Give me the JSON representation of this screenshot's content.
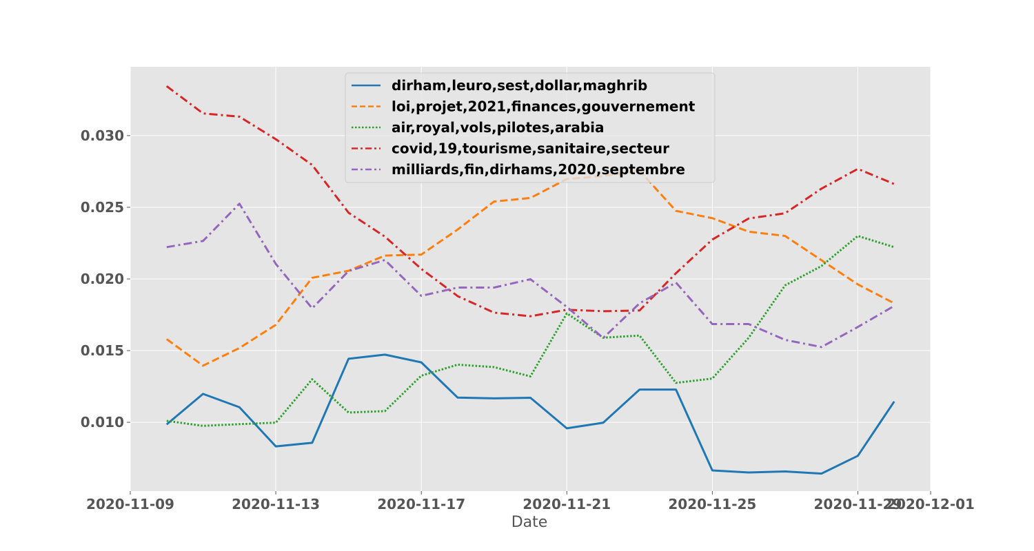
{
  "chart_data": {
    "type": "line",
    "title": "",
    "xlabel": "Date",
    "ylabel": "",
    "x_ticks": [
      "2020-11-09",
      "2020-11-13",
      "2020-11-17",
      "2020-11-21",
      "2020-11-25",
      "2020-11-29",
      "2020-12-01"
    ],
    "y_ticks": [
      "0.010",
      "0.015",
      "0.020",
      "0.025",
      "0.030"
    ],
    "xlim": [
      "2020-11-09",
      "2020-12-01"
    ],
    "ylim": [
      0.0052,
      0.0348
    ],
    "grid": true,
    "legend_position": "top-center",
    "x": [
      "2020-11-10",
      "2020-11-11",
      "2020-11-12",
      "2020-11-13",
      "2020-11-14",
      "2020-11-15",
      "2020-11-16",
      "2020-11-17",
      "2020-11-18",
      "2020-11-19",
      "2020-11-20",
      "2020-11-21",
      "2020-11-22",
      "2020-11-23",
      "2020-11-24",
      "2020-11-25",
      "2020-11-26",
      "2020-11-27",
      "2020-11-28",
      "2020-11-29",
      "2020-11-30"
    ],
    "series": [
      {
        "name": "dirham,leuro,sest,dollar,maghrib",
        "color": "#1f77b4",
        "dash": "solid",
        "values": [
          0.00985,
          0.01198,
          0.01105,
          0.00832,
          0.00857,
          0.01443,
          0.01472,
          0.01418,
          0.01172,
          0.01167,
          0.01171,
          0.00958,
          0.00997,
          0.01228,
          0.01228,
          0.00664,
          0.0065,
          0.00657,
          0.00642,
          0.00766,
          0.01145
        ]
      },
      {
        "name": "loi,projet,2021,finances,gouvernement",
        "color": "#ff7f0e",
        "dash": "dashed",
        "values": [
          0.0158,
          0.01395,
          0.01518,
          0.0168,
          0.02008,
          0.02057,
          0.02163,
          0.0217,
          0.02345,
          0.0254,
          0.02565,
          0.02697,
          0.02718,
          0.02755,
          0.02475,
          0.02424,
          0.0233,
          0.023,
          0.02131,
          0.01962,
          0.0183
        ]
      },
      {
        "name": "air,royal,vols,pilotes,arabia",
        "color": "#2ca02c",
        "dash": "dotted",
        "values": [
          0.0101,
          0.00975,
          0.00987,
          0.00997,
          0.013,
          0.01068,
          0.01078,
          0.01325,
          0.01402,
          0.01385,
          0.0132,
          0.0176,
          0.0159,
          0.01605,
          0.01275,
          0.01305,
          0.0159,
          0.01955,
          0.0209,
          0.023,
          0.02222
        ]
      },
      {
        "name": "covid,19,tourisme,sanitaire,secteur",
        "color": "#d62728",
        "dash": "dashdot",
        "values": [
          0.03345,
          0.03155,
          0.03132,
          0.02975,
          0.02795,
          0.02462,
          0.02295,
          0.0207,
          0.0188,
          0.01765,
          0.0174,
          0.01785,
          0.01775,
          0.0178,
          0.0204,
          0.02275,
          0.02422,
          0.02458,
          0.0263,
          0.02768,
          0.02662
        ]
      },
      {
        "name": "milliards,fin,dirhams,2020,septembre",
        "color": "#9467bd",
        "dash": "dashdot",
        "values": [
          0.02222,
          0.02265,
          0.02525,
          0.02105,
          0.01795,
          0.02055,
          0.02132,
          0.01882,
          0.0194,
          0.0194,
          0.01998,
          0.01805,
          0.01588,
          0.0183,
          0.01975,
          0.01685,
          0.01685,
          0.01575,
          0.01525,
          0.01665,
          0.01812
        ]
      }
    ]
  }
}
